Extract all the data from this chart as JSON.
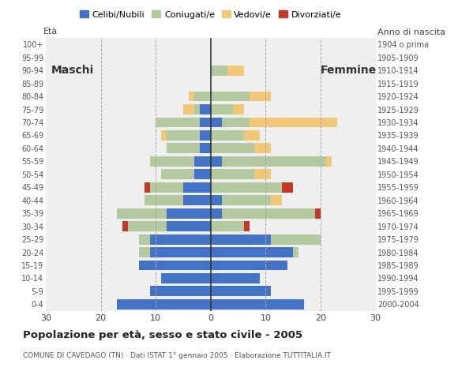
{
  "age_groups": [
    "0-4",
    "5-9",
    "10-14",
    "15-19",
    "20-24",
    "25-29",
    "30-34",
    "35-39",
    "40-44",
    "45-49",
    "50-54",
    "55-59",
    "60-64",
    "65-69",
    "70-74",
    "75-79",
    "80-84",
    "85-89",
    "90-94",
    "95-99",
    "100+"
  ],
  "birth_years": [
    "2000-2004",
    "1995-1999",
    "1990-1994",
    "1985-1989",
    "1980-1984",
    "1975-1979",
    "1970-1974",
    "1965-1969",
    "1960-1964",
    "1955-1959",
    "1950-1954",
    "1945-1949",
    "1940-1944",
    "1935-1939",
    "1930-1934",
    "1925-1929",
    "1920-1924",
    "1915-1919",
    "1910-1914",
    "1905-1909",
    "1904 o prima"
  ],
  "colors": {
    "celibe": "#4472c4",
    "coniugato": "#b5c9a0",
    "vedovo": "#f0c878",
    "divorziato": "#c0392b"
  },
  "maschi": {
    "celibe": [
      17,
      11,
      9,
      13,
      11,
      11,
      8,
      8,
      5,
      5,
      3,
      3,
      2,
      2,
      2,
      2,
      0,
      0,
      0,
      0,
      0
    ],
    "coniugato": [
      0,
      0,
      0,
      0,
      2,
      2,
      7,
      9,
      7,
      6,
      6,
      8,
      6,
      6,
      8,
      1,
      3,
      0,
      0,
      0,
      0
    ],
    "vedovo": [
      0,
      0,
      0,
      0,
      0,
      0,
      0,
      0,
      0,
      0,
      0,
      0,
      0,
      1,
      0,
      2,
      1,
      0,
      0,
      0,
      0
    ],
    "divorziato": [
      0,
      0,
      0,
      0,
      0,
      0,
      1,
      0,
      0,
      1,
      0,
      0,
      0,
      0,
      0,
      0,
      0,
      0,
      0,
      0,
      0
    ]
  },
  "femmine": {
    "celibe": [
      17,
      11,
      9,
      14,
      15,
      11,
      0,
      2,
      2,
      0,
      0,
      2,
      0,
      0,
      2,
      0,
      0,
      0,
      0,
      0,
      0
    ],
    "coniugato": [
      0,
      0,
      0,
      0,
      1,
      9,
      6,
      17,
      9,
      13,
      8,
      19,
      8,
      6,
      5,
      4,
      7,
      0,
      3,
      0,
      0
    ],
    "vedovo": [
      0,
      0,
      0,
      0,
      0,
      0,
      0,
      0,
      2,
      0,
      3,
      1,
      3,
      3,
      16,
      2,
      4,
      0,
      3,
      0,
      0
    ],
    "divorziato": [
      0,
      0,
      0,
      0,
      0,
      0,
      1,
      1,
      0,
      2,
      0,
      0,
      0,
      0,
      0,
      0,
      0,
      0,
      0,
      0,
      0
    ]
  },
  "title": "Popolazione per età, sesso e stato civile - 2005",
  "subtitle": "COMUNE DI CAVEDAGO (TN) · Dati ISTAT 1° gennaio 2005 · Elaborazione TUTTITALIA.IT",
  "label_maschi": "Maschi",
  "label_femmine": "Femmine",
  "label_eta": "Età",
  "label_anno": "Anno di nascita",
  "xlim": 30,
  "bg_color": "#ffffff",
  "plot_bg_color": "#efefef",
  "legend_labels": [
    "Celibi/Nubili",
    "Coniugati/e",
    "Vedovi/e",
    "Divorziati/e"
  ]
}
